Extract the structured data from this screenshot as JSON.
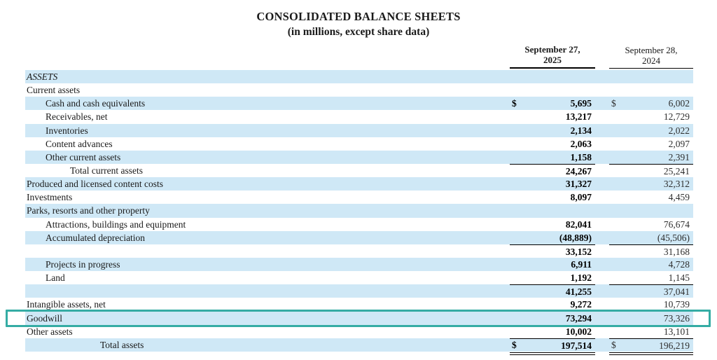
{
  "document": {
    "title": "CONSOLIDATED BALANCE SHEETS",
    "subtitle": "(in millions, except share data)"
  },
  "table": {
    "columns": [
      {
        "line1": "September 27,",
        "line2": "2025"
      },
      {
        "line1": "September 28,",
        "line2": "2024"
      }
    ],
    "rows": [
      {
        "label": "ASSETS",
        "indent": 0,
        "italic": true,
        "shaded": true,
        "d1": "",
        "v1": "",
        "d2": "",
        "v2": ""
      },
      {
        "label": "Current assets",
        "indent": 0,
        "shaded": false,
        "d1": "",
        "v1": "",
        "d2": "",
        "v2": ""
      },
      {
        "label": "Cash and cash equivalents",
        "indent": 1,
        "shaded": true,
        "d1": "$",
        "v1": "5,695",
        "d2": "$",
        "v2": "6,002"
      },
      {
        "label": "Receivables, net",
        "indent": 1,
        "shaded": false,
        "d1": "",
        "v1": "13,217",
        "d2": "",
        "v2": "12,729"
      },
      {
        "label": "Inventories",
        "indent": 1,
        "shaded": true,
        "d1": "",
        "v1": "2,134",
        "d2": "",
        "v2": "2,022"
      },
      {
        "label": "Content advances",
        "indent": 1,
        "shaded": false,
        "d1": "",
        "v1": "2,063",
        "d2": "",
        "v2": "2,097"
      },
      {
        "label": "Other current assets",
        "indent": 1,
        "shaded": true,
        "d1": "",
        "v1": "1,158",
        "d2": "",
        "v2": "2,391"
      },
      {
        "label": "Total current assets",
        "indent": 2,
        "shaded": false,
        "top_border": true,
        "d1": "",
        "v1": "24,267",
        "d2": "",
        "v2": "25,241"
      },
      {
        "label": "Produced and licensed content costs",
        "indent": 0,
        "shaded": true,
        "d1": "",
        "v1": "31,327",
        "d2": "",
        "v2": "32,312"
      },
      {
        "label": "Investments",
        "indent": 0,
        "shaded": false,
        "d1": "",
        "v1": "8,097",
        "d2": "",
        "v2": "4,459"
      },
      {
        "label": "Parks, resorts and other property",
        "indent": 0,
        "shaded": true,
        "d1": "",
        "v1": "",
        "d2": "",
        "v2": ""
      },
      {
        "label": "Attractions, buildings and equipment",
        "indent": 1,
        "shaded": false,
        "d1": "",
        "v1": "82,041",
        "d2": "",
        "v2": "76,674"
      },
      {
        "label": "Accumulated depreciation",
        "indent": 1,
        "shaded": true,
        "d1": "",
        "v1": "(48,889)",
        "d2": "",
        "v2": "(45,506)"
      },
      {
        "label": "",
        "indent": 0,
        "shaded": false,
        "top_border": true,
        "d1": "",
        "v1": "33,152",
        "d2": "",
        "v2": "31,168"
      },
      {
        "label": "Projects in progress",
        "indent": 1,
        "shaded": true,
        "d1": "",
        "v1": "6,911",
        "d2": "",
        "v2": "4,728"
      },
      {
        "label": "Land",
        "indent": 1,
        "shaded": false,
        "d1": "",
        "v1": "1,192",
        "d2": "",
        "v2": "1,145"
      },
      {
        "label": "",
        "indent": 0,
        "shaded": true,
        "top_border": true,
        "d1": "",
        "v1": "41,255",
        "d2": "",
        "v2": "37,041"
      },
      {
        "label": "Intangible assets, net",
        "indent": 0,
        "shaded": false,
        "d1": "",
        "v1": "9,272",
        "d2": "",
        "v2": "10,739"
      },
      {
        "label": "Goodwill",
        "indent": 0,
        "shaded": true,
        "highlight": true,
        "d1": "",
        "v1": "73,294",
        "d2": "",
        "v2": "73,326"
      },
      {
        "label": "Other assets",
        "indent": 0,
        "shaded": false,
        "d1": "",
        "v1": "10,002",
        "d2": "",
        "v2": "13,101"
      },
      {
        "label": "Total assets",
        "indent": 3,
        "shaded": true,
        "top_border": true,
        "double_bottom": true,
        "d1": "$",
        "v1": "197,514",
        "d2": "$",
        "v2": "196,219"
      }
    ]
  },
  "annotations": {
    "goodwill_row_highlighted": true
  },
  "colors": {
    "row_shade": "#cfe8f6",
    "highlight_border": "#35aca4",
    "text": "#1a1a1a"
  }
}
